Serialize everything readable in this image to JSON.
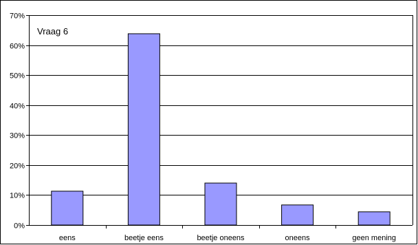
{
  "chart_data": {
    "type": "bar",
    "title": "Vraag 6",
    "categories": [
      "eens",
      "beetje eens",
      "beetje oneens",
      "oneens",
      "geen mening"
    ],
    "values": [
      11.3,
      63.8,
      14.0,
      6.7,
      4.4
    ],
    "unit": "%",
    "ylim": [
      0,
      70
    ],
    "yticks": [
      0,
      10,
      20,
      30,
      40,
      50,
      60,
      70
    ],
    "ytick_labels": [
      "0%",
      "10%",
      "20%",
      "30%",
      "40%",
      "50%",
      "60%",
      "70%"
    ],
    "grid": true,
    "legend": "none",
    "colors": {
      "bar_fill": "#9999ff",
      "bar_stroke": "#000000",
      "grid": "#000000",
      "axis": "#000000",
      "background": "#ffffff",
      "frame": "#000000"
    }
  }
}
